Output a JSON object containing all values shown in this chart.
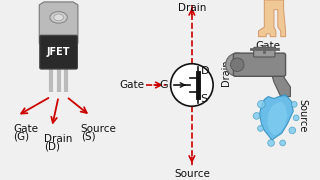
{
  "bg_color": "#f0f0f0",
  "red_color": "#cc0000",
  "black_color": "#111111",
  "white_color": "#ffffff",
  "gray_dark": "#2a2a2a",
  "gray_mid": "#888888",
  "gray_light": "#bbbbbb",
  "gray_tab": "#aaaaaa",
  "blue_water": "#5bb8e8",
  "blue_water2": "#80ccf0",
  "skin_color": "#f0c896",
  "skin_edge": "#d4996a",
  "jfet_label": "JFET",
  "gate_label": "Gate",
  "gate_g_label": "(G)",
  "drain_label": "Drain",
  "drain_d_label": "(D)",
  "source_label": "Source",
  "source_s_label": "(S)",
  "symbol_drain_label": "Drain",
  "symbol_source_label": "Source",
  "symbol_g": "G",
  "symbol_d": "D",
  "symbol_s": "S",
  "gate_arrow_label": "Gate",
  "faucet_gate_label": "Gate",
  "faucet_drain_label": "Drain",
  "faucet_source_label": "Source",
  "fs": 7,
  "fm": 7.5
}
